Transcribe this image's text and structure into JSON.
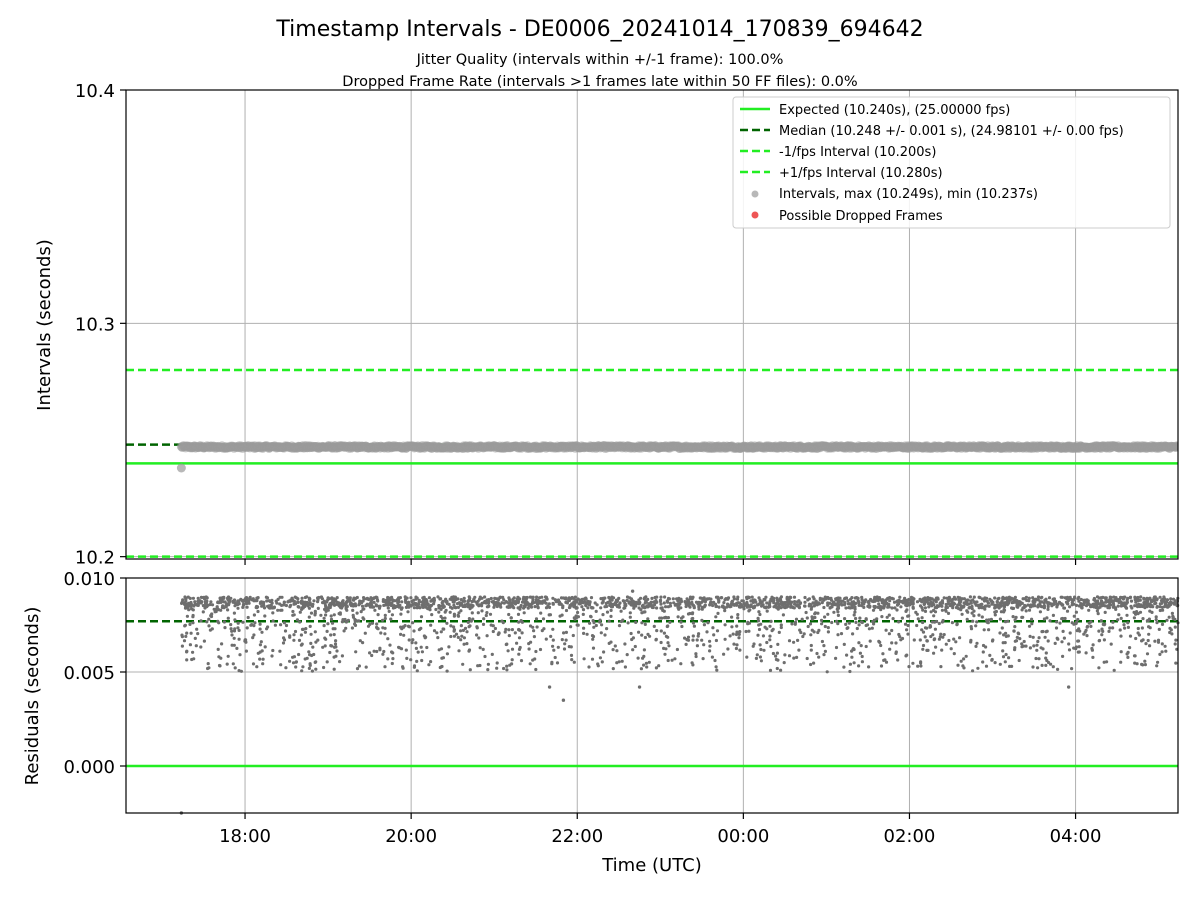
{
  "title": "Timestamp Intervals - DE0006_20241014_170839_694642",
  "subtitle_1": "Jitter Quality (intervals within +/-1 frame): 100.0%",
  "subtitle_2": "Dropped Frame Rate (intervals >1 frames late within 50 FF files): 0.0%",
  "colors": {
    "expected": "#22ee22",
    "median": "#006400",
    "fps_bounds": "#22ee22",
    "intervals": "#9a9a9a",
    "residuals": "#6e6e6e",
    "dropped": "#ee5555",
    "grid": "#b0b0b0"
  },
  "chart_data": [
    {
      "type": "scatter",
      "ylabel": "Intervals (seconds)",
      "xlim": [
        "16:34",
        "05:14"
      ],
      "ylim": [
        10.199,
        10.4
      ],
      "yticks": [
        "10.2",
        "10.3",
        "10.4"
      ],
      "ytick_values": [
        10.2,
        10.3,
        10.4
      ],
      "grid": true,
      "legend_position": "top-right",
      "reference_lines": [
        {
          "name": "Expected (10.240s), (25.00000 fps)",
          "value": 10.24,
          "style": "solid",
          "color": "#22ee22"
        },
        {
          "name": "Median (10.248 +/- 0.001 s), (24.98101 +/- 0.00 fps)",
          "value": 10.248,
          "style": "dashed",
          "color": "#006400"
        },
        {
          "name": "-1/fps Interval (10.200s)",
          "value": 10.2,
          "style": "dashed",
          "color": "#22ee22"
        },
        {
          "name": "+1/fps Interval (10.280s)",
          "value": 10.28,
          "style": "dashed",
          "color": "#22ee22"
        }
      ],
      "series": [
        {
          "name": "Intervals, max (10.249s), min (10.237s)",
          "type": "scatter",
          "x_range": [
            "17:14",
            "05:14"
          ],
          "y_min": 10.245,
          "y_max": 10.249,
          "outliers": [
            {
              "x": "17:14",
              "y": 10.238
            }
          ]
        },
        {
          "name": "Possible Dropped Frames",
          "type": "scatter",
          "points": []
        }
      ]
    },
    {
      "type": "scatter",
      "xlabel": "Time (UTC)",
      "ylabel": "Residuals (seconds)",
      "xlim": [
        "16:34",
        "05:14"
      ],
      "ylim": [
        -0.0025,
        0.01
      ],
      "yticks": [
        "0.000",
        "0.005",
        "0.010"
      ],
      "ytick_values": [
        0.0,
        0.005,
        0.01
      ],
      "xticks": [
        "18:00",
        "20:00",
        "22:00",
        "00:00",
        "02:00",
        "04:00"
      ],
      "grid": true,
      "reference_lines": [
        {
          "name": "Expected",
          "value": 0.0,
          "style": "solid",
          "color": "#22ee22"
        },
        {
          "name": "Median",
          "value": 0.0077,
          "style": "dashed",
          "color": "#006400"
        }
      ],
      "series": [
        {
          "name": "Residuals",
          "type": "scatter",
          "x_range": [
            "17:14",
            "05:14"
          ],
          "y_typical_range": [
            0.005,
            0.009
          ],
          "outliers": [
            {
              "x": "17:14",
              "y": -0.0025
            },
            {
              "x": "21:50",
              "y": 0.0035
            },
            {
              "x": "21:40",
              "y": 0.0042
            },
            {
              "x": "22:45",
              "y": 0.0042
            },
            {
              "x": "03:55",
              "y": 0.0042
            },
            {
              "x": "22:40",
              "y": 0.0093
            }
          ]
        }
      ]
    }
  ]
}
